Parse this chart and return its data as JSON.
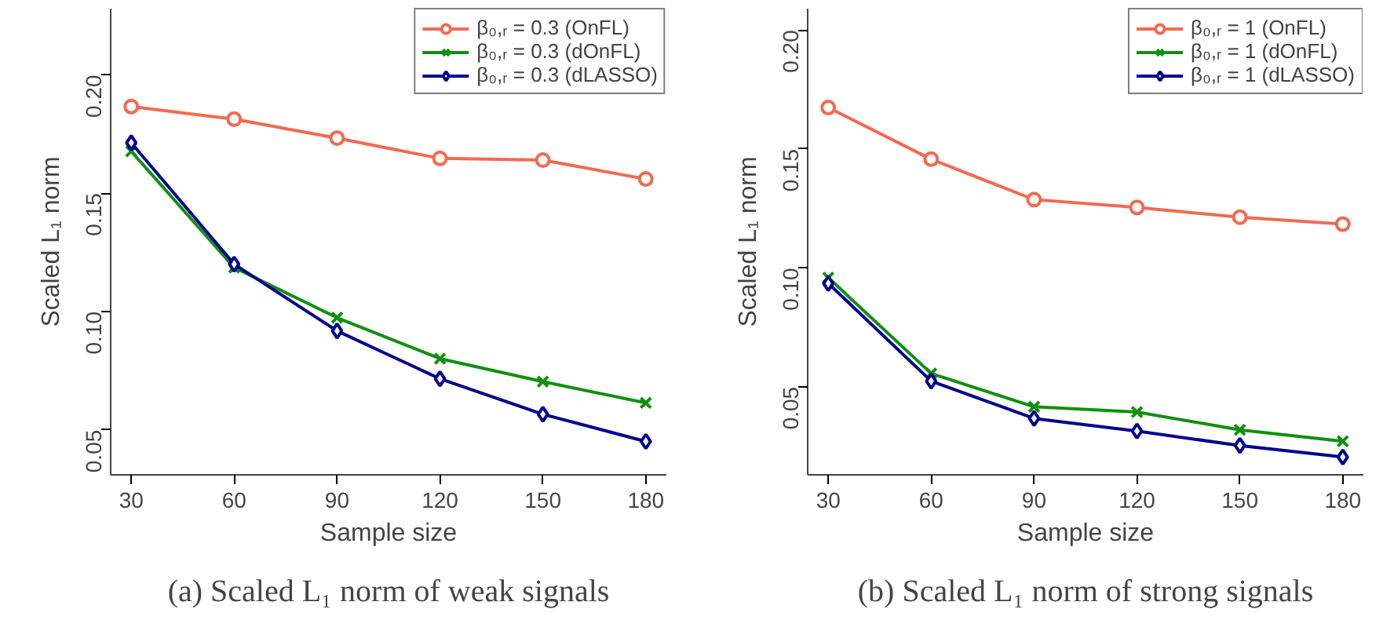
{
  "chart_data": [
    {
      "type": "line",
      "xlabel": "Sample size",
      "ylabel": "Scaled L₁ norm",
      "x": [
        30,
        60,
        90,
        120,
        150,
        180
      ],
      "xlim": [
        24,
        186
      ],
      "xticks": [
        30,
        60,
        90,
        120,
        150,
        180
      ],
      "ylim": [
        0.031,
        0.228
      ],
      "yticks": [
        {
          "value": 0.05,
          "label": "0.05"
        },
        {
          "value": 0.1,
          "label": "0.10"
        },
        {
          "value": 0.15,
          "label": "0.15"
        },
        {
          "value": 0.2,
          "label": "0.20"
        }
      ],
      "grid": false,
      "legend": "top right",
      "line_style": "solid",
      "series": [
        {
          "name": "β₀,ᵣ = 0.3 (OnFL)",
          "color": "#f26a50",
          "marker": "circle",
          "values": [
            0.1866,
            0.1813,
            0.1733,
            0.1647,
            0.164,
            0.156
          ]
        },
        {
          "name": "β₀,ᵣ = 0.3 (dOnFL)",
          "color": "#109010",
          "marker": "cross",
          "values": [
            0.1677,
            0.1186,
            0.0974,
            0.0801,
            0.0704,
            0.0614
          ]
        },
        {
          "name": "β₀,ᵣ = 0.3 (dLASSO)",
          "color": "#000090",
          "marker": "diamond",
          "values": [
            0.1713,
            0.12,
            0.0918,
            0.0716,
            0.0566,
            0.0451
          ]
        }
      ],
      "annotations": [
        "(a) Scaled L₁ norm of weak signals"
      ]
    },
    {
      "type": "line",
      "xlabel": "Sample size",
      "ylabel": "Scaled L₁ norm",
      "x": [
        30,
        60,
        90,
        120,
        150,
        180
      ],
      "xlim": [
        24,
        186
      ],
      "xticks": [
        30,
        60,
        90,
        120,
        150,
        180
      ],
      "ylim": [
        0.013,
        0.209
      ],
      "yticks": [
        {
          "value": 0.05,
          "label": "0.05"
        },
        {
          "value": 0.1,
          "label": "0.10"
        },
        {
          "value": 0.15,
          "label": "0.15"
        },
        {
          "value": 0.2,
          "label": "0.20"
        }
      ],
      "grid": false,
      "legend": "top right",
      "line_style": "solid",
      "series": [
        {
          "name": "β₀,ᵣ = 1 (OnFL)",
          "color": "#f26a50",
          "marker": "circle",
          "values": [
            0.1674,
            0.1457,
            0.1287,
            0.1254,
            0.1213,
            0.1184
          ]
        },
        {
          "name": "β₀,ᵣ = 1 (dOnFL)",
          "color": "#109010",
          "marker": "cross",
          "values": [
            0.0959,
            0.0556,
            0.0416,
            0.0394,
            0.0319,
            0.0271
          ]
        },
        {
          "name": "β₀,ᵣ = 1 (dLASSO)",
          "color": "#000090",
          "marker": "diamond",
          "values": [
            0.0935,
            0.0524,
            0.0367,
            0.0314,
            0.0253,
            0.0205
          ]
        }
      ],
      "annotations": [
        "(b) Scaled L₁ norm of strong signals"
      ]
    }
  ]
}
